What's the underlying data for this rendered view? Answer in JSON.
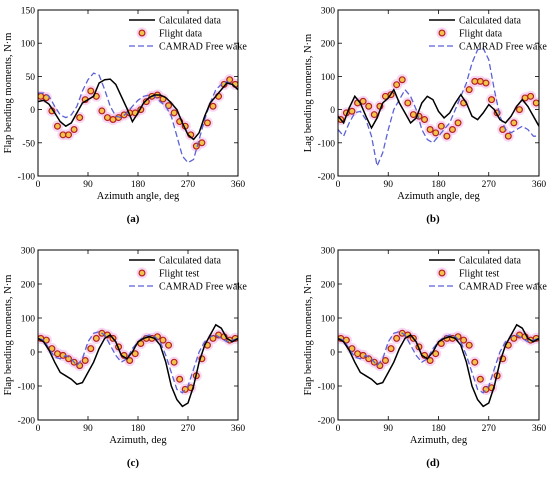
{
  "figure": {
    "panel_labels": [
      "(a)",
      "(b)",
      "(c)",
      "(d)"
    ]
  },
  "colors": {
    "calculated": "#000000",
    "flight_marker_edge": "#b22222",
    "flight_marker_fill": "#f2c24a",
    "flight_glow": "#f3b6e8",
    "camrad": "#5b62d6"
  },
  "chart_data": [
    {
      "type": "line",
      "xlabel": "Azimuth angle, deg",
      "ylabel": "Flap bending moments, N·m",
      "xlim": [
        0,
        360
      ],
      "ylim": [
        -100,
        150
      ],
      "xticks": [
        0,
        90,
        180,
        270,
        360
      ],
      "yticks": [
        -100,
        -50,
        0,
        50,
        100,
        150
      ],
      "legend_position": "top-right",
      "series": [
        {
          "name": "Calculated data",
          "style": "solid",
          "x": [
            0,
            10,
            20,
            30,
            40,
            50,
            60,
            70,
            80,
            90,
            100,
            110,
            120,
            130,
            140,
            150,
            160,
            170,
            180,
            190,
            200,
            210,
            220,
            230,
            240,
            250,
            260,
            270,
            280,
            290,
            300,
            310,
            320,
            330,
            340,
            350,
            360
          ],
          "y": [
            12,
            14,
            8,
            -5,
            -18,
            -25,
            -20,
            -5,
            10,
            15,
            20,
            40,
            45,
            46,
            38,
            20,
            2,
            -18,
            -5,
            10,
            18,
            22,
            22,
            18,
            10,
            0,
            -20,
            -38,
            -45,
            -35,
            -10,
            10,
            20,
            30,
            40,
            38,
            30
          ]
        },
        {
          "name": "Flight data",
          "style": "marker",
          "x": [
            5,
            15,
            25,
            35,
            45,
            55,
            65,
            75,
            85,
            95,
            105,
            115,
            125,
            135,
            145,
            155,
            165,
            175,
            185,
            195,
            205,
            215,
            225,
            235,
            245,
            255,
            265,
            275,
            285,
            295,
            305,
            315,
            325,
            335,
            345,
            355
          ],
          "y": [
            20,
            18,
            -2,
            -25,
            -38,
            -38,
            -30,
            -12,
            15,
            28,
            20,
            -2,
            -12,
            -15,
            -12,
            -8,
            -5,
            -5,
            0,
            12,
            20,
            22,
            16,
            6,
            -5,
            -18,
            -25,
            -38,
            -55,
            -50,
            -20,
            5,
            20,
            38,
            45,
            38
          ]
        },
        {
          "name": "CAMRAD Free wake",
          "style": "dashed",
          "x": [
            0,
            10,
            20,
            30,
            40,
            50,
            60,
            70,
            80,
            90,
            100,
            110,
            120,
            130,
            140,
            150,
            160,
            170,
            180,
            190,
            200,
            210,
            220,
            230,
            240,
            250,
            260,
            270,
            280,
            290,
            300,
            310,
            320,
            330,
            340,
            350,
            360
          ],
          "y": [
            25,
            25,
            20,
            5,
            -8,
            -12,
            -8,
            5,
            28,
            45,
            55,
            52,
            30,
            5,
            -10,
            -12,
            -5,
            5,
            14,
            20,
            22,
            20,
            12,
            5,
            -10,
            -40,
            -70,
            -80,
            -75,
            -45,
            -15,
            10,
            30,
            38,
            42,
            38,
            30
          ]
        }
      ]
    },
    {
      "type": "line",
      "xlabel": "Azimuth angle, deg",
      "ylabel": "Lag bending moments, N·m",
      "xlim": [
        0,
        360
      ],
      "ylim": [
        -200,
        300
      ],
      "xticks": [
        0,
        90,
        180,
        270,
        360
      ],
      "yticks": [
        -200,
        -100,
        0,
        100,
        200,
        300
      ],
      "legend_position": "top-right",
      "series": [
        {
          "name": "Calculated data",
          "style": "solid",
          "x": [
            0,
            10,
            20,
            30,
            40,
            50,
            60,
            70,
            80,
            90,
            100,
            110,
            120,
            130,
            140,
            150,
            160,
            170,
            180,
            190,
            200,
            210,
            220,
            230,
            240,
            250,
            260,
            270,
            280,
            290,
            300,
            310,
            320,
            330,
            340,
            350,
            360
          ],
          "y": [
            -20,
            -40,
            5,
            40,
            20,
            -20,
            -55,
            -25,
            20,
            35,
            60,
            20,
            -10,
            -40,
            -25,
            20,
            40,
            30,
            -5,
            -25,
            -10,
            20,
            45,
            20,
            -20,
            -30,
            -10,
            15,
            0,
            -30,
            -40,
            -20,
            10,
            30,
            10,
            -20,
            -50
          ]
        },
        {
          "name": "Flight data",
          "style": "marker",
          "x": [
            5,
            15,
            25,
            35,
            45,
            55,
            65,
            75,
            85,
            95,
            105,
            115,
            125,
            135,
            145,
            155,
            165,
            175,
            185,
            195,
            205,
            215,
            225,
            235,
            245,
            255,
            265,
            275,
            285,
            295,
            305,
            315,
            325,
            335,
            345,
            355
          ],
          "y": [
            -30,
            -10,
            -5,
            20,
            25,
            10,
            -15,
            10,
            40,
            45,
            75,
            90,
            20,
            -15,
            -20,
            -30,
            -60,
            -70,
            -50,
            -80,
            -60,
            -40,
            20,
            60,
            85,
            85,
            80,
            30,
            -10,
            -60,
            -80,
            -40,
            0,
            35,
            40,
            20
          ]
        },
        {
          "name": "CAMRAD Free wake",
          "style": "dashed",
          "x": [
            0,
            10,
            20,
            30,
            40,
            50,
            60,
            70,
            80,
            90,
            100,
            110,
            120,
            130,
            140,
            150,
            160,
            170,
            180,
            190,
            200,
            210,
            220,
            230,
            240,
            250,
            260,
            270,
            280,
            290,
            300,
            310,
            320,
            330,
            340,
            350,
            360
          ],
          "y": [
            -60,
            -80,
            -40,
            -10,
            -5,
            -30,
            -80,
            -170,
            -130,
            -60,
            0,
            30,
            60,
            40,
            0,
            -60,
            -90,
            -100,
            -80,
            -60,
            -40,
            0,
            40,
            80,
            140,
            180,
            185,
            150,
            60,
            -20,
            -60,
            -70,
            -60,
            -50,
            -60,
            -80,
            -80
          ]
        }
      ]
    },
    {
      "type": "line",
      "xlabel": "Azimuth, deg",
      "ylabel": "Flap bending moments, N·m",
      "xlim": [
        0,
        360
      ],
      "ylim": [
        -200,
        300
      ],
      "xticks": [
        0,
        90,
        180,
        270,
        360
      ],
      "yticks": [
        -200,
        -100,
        0,
        100,
        200,
        300
      ],
      "legend_position": "top-right",
      "series": [
        {
          "name": "Calculated data",
          "style": "solid",
          "x": [
            0,
            10,
            20,
            30,
            40,
            50,
            60,
            70,
            80,
            90,
            100,
            110,
            120,
            130,
            140,
            150,
            160,
            170,
            180,
            190,
            200,
            210,
            220,
            230,
            240,
            250,
            260,
            270,
            280,
            290,
            300,
            310,
            320,
            330,
            340,
            350,
            360
          ],
          "y": [
            40,
            30,
            5,
            -30,
            -60,
            -70,
            -80,
            -95,
            -90,
            -60,
            -30,
            10,
            40,
            50,
            30,
            -10,
            -20,
            0,
            30,
            40,
            45,
            40,
            20,
            -30,
            -100,
            -140,
            -160,
            -150,
            -100,
            -30,
            20,
            50,
            80,
            70,
            40,
            30,
            40
          ]
        },
        {
          "name": "Flight test",
          "style": "marker",
          "x": [
            5,
            15,
            25,
            35,
            45,
            55,
            65,
            75,
            85,
            95,
            105,
            115,
            125,
            135,
            145,
            155,
            165,
            175,
            185,
            195,
            205,
            215,
            225,
            235,
            245,
            255,
            265,
            275,
            285,
            295,
            305,
            315,
            325,
            335,
            345,
            355
          ],
          "y": [
            40,
            35,
            10,
            -5,
            -10,
            -20,
            -30,
            -40,
            -25,
            10,
            40,
            55,
            50,
            40,
            15,
            -10,
            -25,
            -5,
            25,
            40,
            40,
            45,
            35,
            20,
            -30,
            -80,
            -110,
            -105,
            -70,
            -20,
            20,
            40,
            50,
            45,
            35,
            40
          ]
        },
        {
          "name": "CAMRAD Free wake",
          "style": "dashed",
          "x": [
            0,
            10,
            20,
            30,
            40,
            50,
            60,
            70,
            80,
            90,
            100,
            110,
            120,
            130,
            140,
            150,
            160,
            170,
            180,
            190,
            200,
            210,
            220,
            230,
            240,
            250,
            260,
            270,
            280,
            290,
            300,
            310,
            320,
            330,
            340,
            350,
            360
          ],
          "y": [
            40,
            35,
            10,
            -15,
            -20,
            -10,
            -20,
            -40,
            -20,
            30,
            55,
            60,
            50,
            20,
            -10,
            -30,
            -20,
            10,
            30,
            45,
            50,
            45,
            30,
            -10,
            -60,
            -110,
            -120,
            -100,
            -50,
            0,
            30,
            45,
            50,
            40,
            30,
            35,
            40
          ]
        }
      ]
    },
    {
      "type": "line",
      "xlabel": "Azimuth, deg",
      "ylabel": "Flap bending moments, N·m",
      "xlim": [
        0,
        360
      ],
      "ylim": [
        -200,
        300
      ],
      "xticks": [
        0,
        90,
        180,
        270,
        360
      ],
      "yticks": [
        -200,
        -100,
        0,
        100,
        200,
        300
      ],
      "legend_position": "top-right",
      "series": [
        {
          "name": "Calculated data",
          "style": "solid",
          "x": [
            0,
            10,
            20,
            30,
            40,
            50,
            60,
            70,
            80,
            90,
            100,
            110,
            120,
            130,
            140,
            150,
            160,
            170,
            180,
            190,
            200,
            210,
            220,
            230,
            240,
            250,
            260,
            270,
            280,
            290,
            300,
            310,
            320,
            330,
            340,
            350,
            360
          ],
          "y": [
            40,
            30,
            5,
            -30,
            -60,
            -70,
            -80,
            -95,
            -90,
            -60,
            -30,
            10,
            40,
            50,
            30,
            -10,
            -20,
            0,
            30,
            40,
            45,
            40,
            20,
            -30,
            -100,
            -140,
            -160,
            -150,
            -100,
            -30,
            20,
            50,
            80,
            70,
            40,
            30,
            40
          ]
        },
        {
          "name": "Flight test",
          "style": "marker",
          "x": [
            5,
            15,
            25,
            35,
            45,
            55,
            65,
            75,
            85,
            95,
            105,
            115,
            125,
            135,
            145,
            155,
            165,
            175,
            185,
            195,
            205,
            215,
            225,
            235,
            245,
            255,
            265,
            275,
            285,
            295,
            305,
            315,
            325,
            335,
            345,
            355
          ],
          "y": [
            40,
            35,
            10,
            -5,
            -10,
            -20,
            -30,
            -40,
            -25,
            10,
            40,
            55,
            50,
            40,
            15,
            -10,
            -25,
            -5,
            25,
            40,
            40,
            45,
            35,
            20,
            -30,
            -80,
            -110,
            -105,
            -70,
            -20,
            20,
            40,
            50,
            45,
            35,
            40
          ]
        },
        {
          "name": "CAMRAD Free wake",
          "style": "dashed",
          "x": [
            0,
            10,
            20,
            30,
            40,
            50,
            60,
            70,
            80,
            90,
            100,
            110,
            120,
            130,
            140,
            150,
            160,
            170,
            180,
            190,
            200,
            210,
            220,
            230,
            240,
            250,
            260,
            270,
            280,
            290,
            300,
            310,
            320,
            330,
            340,
            350,
            360
          ],
          "y": [
            40,
            35,
            10,
            -15,
            -20,
            -10,
            -20,
            -40,
            -20,
            30,
            55,
            60,
            50,
            20,
            -10,
            -30,
            -20,
            10,
            30,
            45,
            50,
            45,
            30,
            -10,
            -60,
            -110,
            -120,
            -100,
            -50,
            0,
            30,
            45,
            50,
            40,
            30,
            35,
            40
          ]
        }
      ]
    }
  ]
}
